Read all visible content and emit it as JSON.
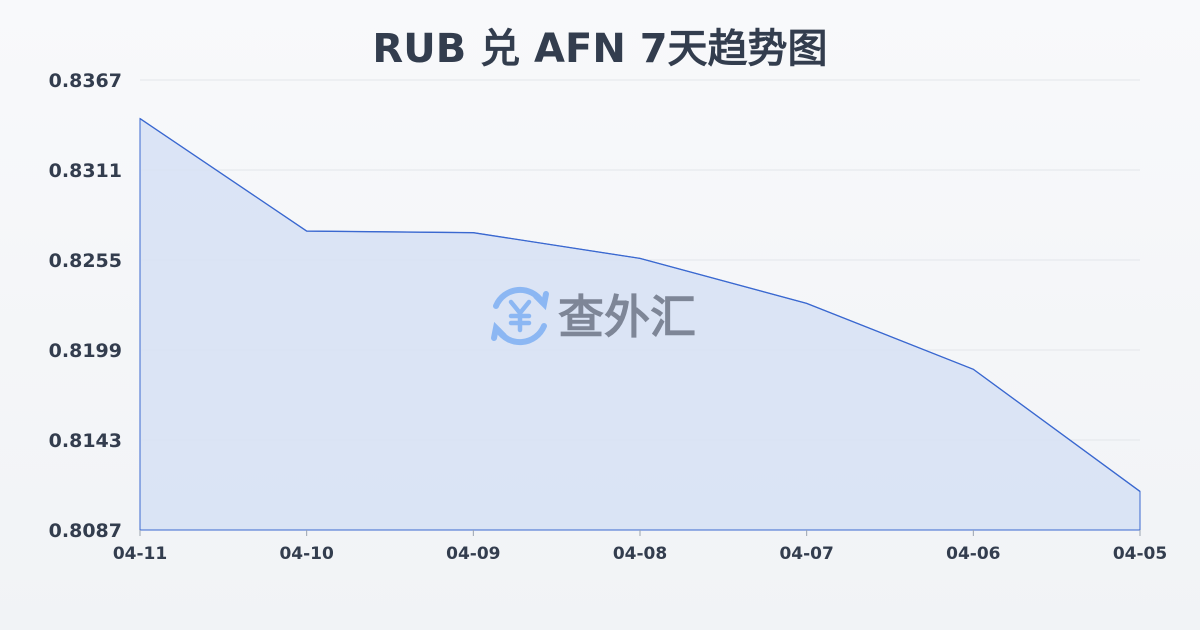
{
  "chart_data": {
    "type": "area",
    "title": "RUB 兑 AFN 7天趋势图",
    "categories": [
      "04-11",
      "04-10",
      "04-09",
      "04-08",
      "04-07",
      "04-06",
      "04-05"
    ],
    "values": [
      0.8343,
      0.8273,
      0.8272,
      0.8256,
      0.8228,
      0.8187,
      0.8111
    ],
    "yticks": [
      "0.8367",
      "0.8311",
      "0.8255",
      "0.8199",
      "0.8143",
      "0.8087"
    ],
    "ylim": [
      0.8087,
      0.8367
    ],
    "grid": true,
    "colors": {
      "line": "#3a68d0",
      "fill": "#d6e1f5",
      "text": "#333d4e",
      "grid": "#e3e6ea"
    }
  },
  "watermark": {
    "text": "查外汇",
    "icon": "yen-exchange-icon",
    "icon_color": "#7fb0f3",
    "text_color": "#6e7687"
  }
}
